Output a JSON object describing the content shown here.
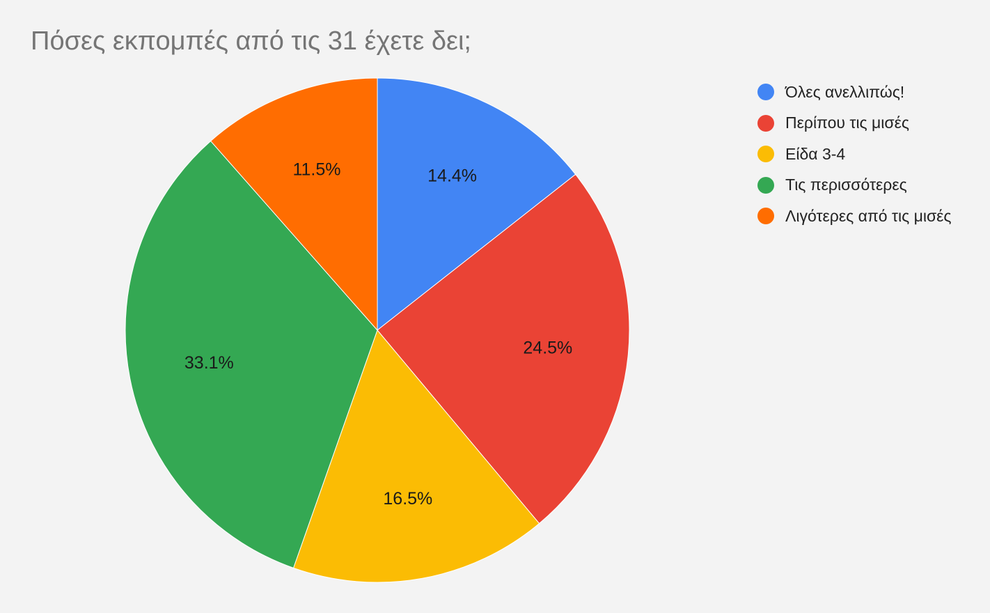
{
  "chart_data": {
    "type": "pie",
    "title": "Πόσες εκπομπές από τις 31 έχετε δει;",
    "legend_position": "right",
    "start_angle_deg": 0,
    "direction": "clockwise",
    "slices": [
      {
        "label": "Όλες ανελλιπώς!",
        "value": 14.4,
        "display": "14.4%",
        "color": "#4285f4"
      },
      {
        "label": "Περίπου τις μισές",
        "value": 24.5,
        "display": "24.5%",
        "color": "#ea4335"
      },
      {
        "label": "Είδα 3-4",
        "value": 16.5,
        "display": "16.5%",
        "color": "#fbbc04"
      },
      {
        "label": "Τις περισσότερες",
        "value": 33.1,
        "display": "33.1%",
        "color": "#34a853"
      },
      {
        "label": "Λιγότερες από τις μισές",
        "value": 11.5,
        "display": "11.5%",
        "color": "#ff6d01"
      }
    ]
  }
}
